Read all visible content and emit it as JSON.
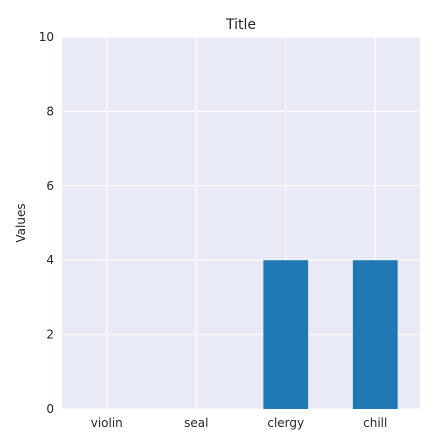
{
  "chart_data": {
    "type": "bar",
    "title": "Title",
    "xlabel": "",
    "ylabel": "Values",
    "categories": [
      "violin",
      "seal",
      "clergy",
      "chill"
    ],
    "values": [
      0,
      0,
      4,
      4
    ],
    "ylim": [
      0,
      10
    ],
    "yticks": [
      0,
      2,
      4,
      6,
      8,
      10
    ],
    "grid": true,
    "colors": {
      "bar": "#1f77b4",
      "plot_background": "#e8ebf5",
      "grid": "#ffffff",
      "text": "#262626"
    }
  }
}
